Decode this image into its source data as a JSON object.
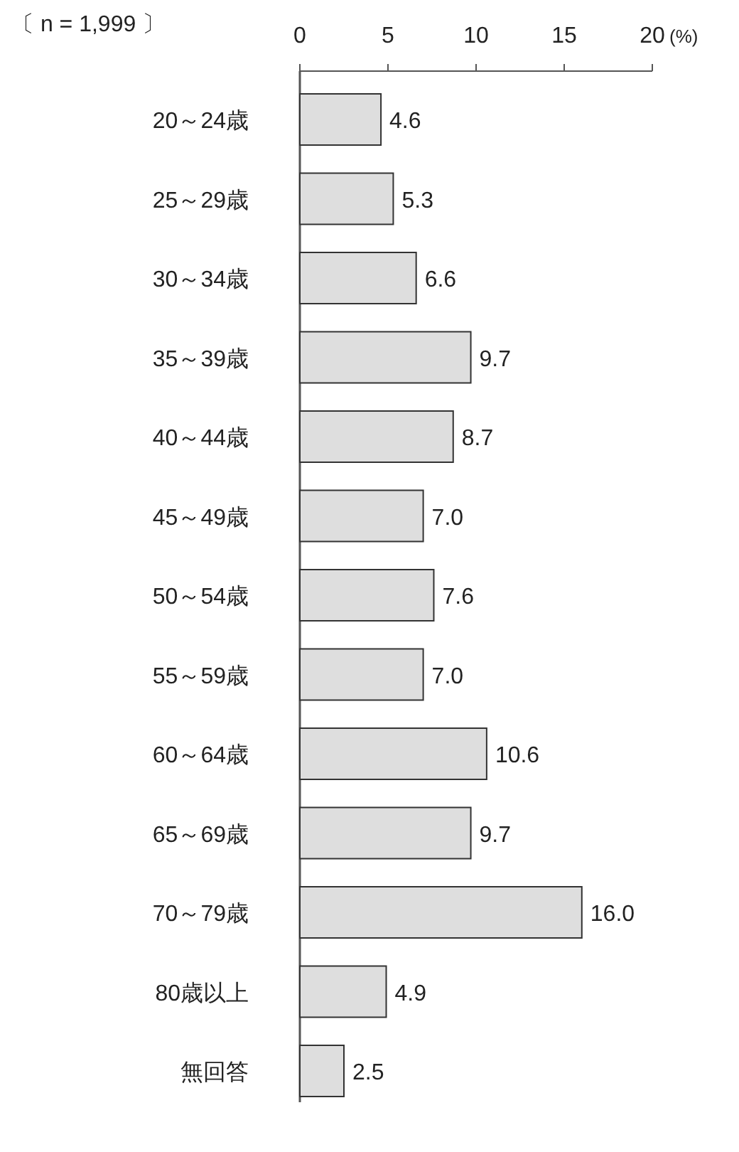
{
  "chart_data": {
    "type": "bar",
    "orientation": "horizontal",
    "categories": [
      "20～24歳",
      "25～29歳",
      "30～34歳",
      "35～39歳",
      "40～44歳",
      "45～49歳",
      "50～54歳",
      "55～59歳",
      "60～64歳",
      "65～69歳",
      "70～79歳",
      "80歳以上",
      "無回答"
    ],
    "values": [
      4.6,
      5.3,
      6.6,
      9.7,
      8.7,
      7.0,
      7.6,
      7.0,
      10.6,
      9.7,
      16.0,
      4.9,
      2.5
    ],
    "value_labels": [
      "4.6",
      "5.3",
      "6.6",
      "9.7",
      "8.7",
      "7.0",
      "7.6",
      "7.0",
      "10.6",
      "9.7",
      "16.0",
      "4.9",
      "2.5"
    ],
    "color": "#dedede",
    "xlim": [
      0,
      20
    ],
    "xticks": [
      0,
      5,
      10,
      15,
      20
    ],
    "xlabel": "(%)",
    "annotations": [
      "〔 n = 1,999 〕"
    ]
  }
}
